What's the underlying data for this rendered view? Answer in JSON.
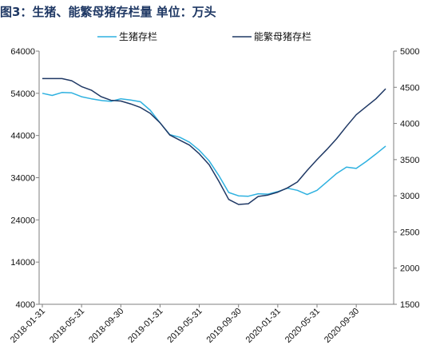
{
  "title": "图3：生猪、能繁母猪存栏量 单位：万头",
  "chart_data": {
    "type": "line",
    "title": "图3：生猪、能繁母猪存栏量 单位：万头",
    "legend_position": "top-center",
    "grid": false,
    "y_left": {
      "ticks": [
        "64000",
        "54000",
        "44000",
        "34000",
        "24000",
        "14000",
        "4000"
      ],
      "range": [
        4000,
        64000
      ]
    },
    "y_right": {
      "ticks": [
        "5000",
        "4500",
        "4000",
        "3500",
        "3000",
        "2500",
        "2000",
        "1500"
      ],
      "range": [
        1500,
        5000
      ]
    },
    "x_tick_labels": [
      "2018-01-31",
      "2018-05-31",
      "2018-09-30",
      "2019-01-31",
      "2019-05-31",
      "2019-09-30",
      "2020-01-31",
      "2020-05-31",
      "2020-09-30"
    ],
    "x": [
      "2018-01-31",
      "2018-02-28",
      "2018-03-31",
      "2018-04-30",
      "2018-05-31",
      "2018-06-30",
      "2018-07-31",
      "2018-08-31",
      "2018-09-30",
      "2018-10-31",
      "2018-11-30",
      "2018-12-31",
      "2019-01-31",
      "2019-02-28",
      "2019-03-31",
      "2019-04-30",
      "2019-05-31",
      "2019-06-30",
      "2019-07-31",
      "2019-08-31",
      "2019-09-30",
      "2019-10-31",
      "2019-11-30",
      "2019-12-31",
      "2020-01-31",
      "2020-02-29",
      "2020-03-31",
      "2020-04-30",
      "2020-05-31",
      "2020-06-30",
      "2020-07-31",
      "2020-08-31",
      "2020-09-30",
      "2020-10-31",
      "2020-11-30",
      "2020-12-31"
    ],
    "series": [
      {
        "name": "生猪存栏",
        "axis": "left",
        "color": "#2eb1e0",
        "values": [
          54000,
          53500,
          54200,
          54100,
          53200,
          52700,
          52300,
          52100,
          52700,
          52400,
          52000,
          50000,
          47000,
          44200,
          43600,
          42400,
          40500,
          38000,
          34500,
          30500,
          29700,
          29600,
          30200,
          30100,
          30700,
          31500,
          31000,
          30000,
          31000,
          33000,
          35000,
          36500,
          36200,
          37800,
          39600,
          41500
        ]
      },
      {
        "name": "能繁母猪存栏",
        "axis": "right",
        "color": "#1f3864",
        "values": [
          4620,
          4620,
          4620,
          4590,
          4510,
          4460,
          4370,
          4320,
          4310,
          4270,
          4220,
          4140,
          4010,
          3840,
          3770,
          3700,
          3580,
          3430,
          3200,
          2950,
          2880,
          2890,
          2990,
          3010,
          3050,
          3110,
          3190,
          3350,
          3500,
          3640,
          3790,
          3960,
          4120,
          4230,
          4340,
          4480
        ]
      }
    ]
  }
}
